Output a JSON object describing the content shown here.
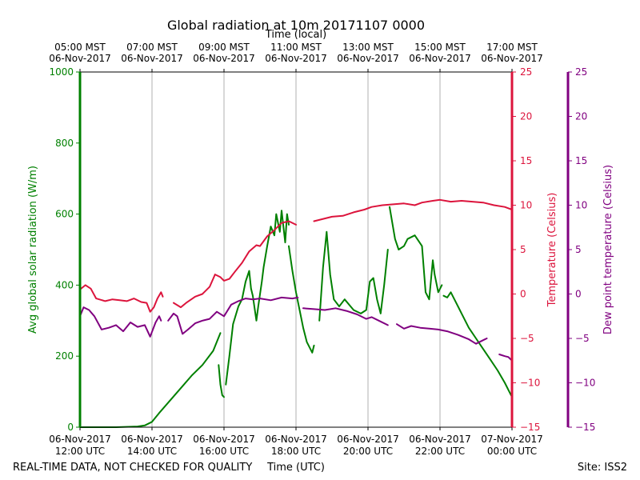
{
  "chart_data": {
    "type": "line",
    "title": "Global radiation at 10m 20171107 0000",
    "top_axis_label": "Time (local)",
    "xlabel": "Time (UTC)",
    "bottom_ticks": [
      {
        "hour": 12,
        "line1": "06-Nov-2017",
        "line2": "12:00 UTC"
      },
      {
        "hour": 14,
        "line1": "06-Nov-2017",
        "line2": "14:00 UTC"
      },
      {
        "hour": 16,
        "line1": "06-Nov-2017",
        "line2": "16:00 UTC"
      },
      {
        "hour": 18,
        "line1": "06-Nov-2017",
        "line2": "18:00 UTC"
      },
      {
        "hour": 20,
        "line1": "06-Nov-2017",
        "line2": "20:00 UTC"
      },
      {
        "hour": 22,
        "line1": "06-Nov-2017",
        "line2": "22:00 UTC"
      },
      {
        "hour": 24,
        "line1": "07-Nov-2017",
        "line2": "00:00 UTC"
      }
    ],
    "top_ticks": [
      {
        "hour": 12,
        "line1": "05:00 MST",
        "line2": "06-Nov-2017"
      },
      {
        "hour": 14,
        "line1": "07:00 MST",
        "line2": "06-Nov-2017"
      },
      {
        "hour": 16,
        "line1": "09:00 MST",
        "line2": "06-Nov-2017"
      },
      {
        "hour": 18,
        "line1": "11:00 MST",
        "line2": "06-Nov-2017"
      },
      {
        "hour": 20,
        "line1": "13:00 MST",
        "line2": "06-Nov-2017"
      },
      {
        "hour": 22,
        "line1": "15:00 MST",
        "line2": "06-Nov-2017"
      },
      {
        "hour": 24,
        "line1": "17:00 MST",
        "line2": "06-Nov-2017"
      }
    ],
    "xlim": [
      12,
      24
    ],
    "axes": {
      "radiation": {
        "label": "Avg global solar radiation (W/m)",
        "ylim": [
          0,
          1000
        ],
        "ticks": [
          0,
          200,
          400,
          600,
          800,
          1000
        ],
        "color": "#008000"
      },
      "temperature": {
        "label": "Temperature (Celsius)",
        "ylim": [
          -15,
          25
        ],
        "ticks": [
          -15,
          -10,
          -5,
          0,
          5,
          10,
          15,
          20,
          25
        ],
        "color": "#dc143c"
      },
      "dewpoint": {
        "label": "Dew point temperature (Celsius)",
        "ylim": [
          -15,
          25
        ],
        "ticks": [
          -15,
          -10,
          -5,
          0,
          5,
          10,
          15,
          20,
          25
        ],
        "color": "#800080"
      }
    },
    "series": [
      {
        "name": "Avg global solar radiation",
        "axis": "radiation",
        "color": "#008000",
        "segments": [
          [
            [
              12.0,
              0
            ],
            [
              13.0,
              0
            ],
            [
              13.6,
              2
            ],
            [
              13.8,
              5
            ],
            [
              14.0,
              15
            ],
            [
              14.2,
              40
            ],
            [
              14.5,
              75
            ],
            [
              14.8,
              110
            ],
            [
              15.1,
              145
            ],
            [
              15.4,
              175
            ],
            [
              15.7,
              215
            ],
            [
              15.8,
              240
            ],
            [
              15.9,
              265
            ]
          ],
          [
            [
              15.85,
              175
            ],
            [
              15.9,
              120
            ],
            [
              15.95,
              90
            ],
            [
              16.0,
              85
            ]
          ],
          [
            [
              16.05,
              120
            ],
            [
              16.15,
              200
            ],
            [
              16.25,
              290
            ],
            [
              16.4,
              340
            ],
            [
              16.5,
              360
            ],
            [
              16.6,
              410
            ],
            [
              16.7,
              440
            ],
            [
              16.75,
              390
            ],
            [
              16.8,
              370
            ],
            [
              16.9,
              300
            ],
            [
              16.95,
              340
            ],
            [
              17.05,
              410
            ],
            [
              17.1,
              450
            ],
            [
              17.2,
              510
            ],
            [
              17.3,
              565
            ],
            [
              17.4,
              540
            ],
            [
              17.45,
              600
            ],
            [
              17.55,
              550
            ],
            [
              17.6,
              610
            ],
            [
              17.7,
              520
            ],
            [
              17.75,
              600
            ],
            [
              17.8,
              570
            ]
          ],
          [
            [
              17.8,
              510
            ],
            [
              17.9,
              440
            ],
            [
              18.0,
              380
            ],
            [
              18.1,
              330
            ],
            [
              18.2,
              280
            ],
            [
              18.3,
              240
            ],
            [
              18.45,
              210
            ],
            [
              18.5,
              230
            ]
          ],
          [
            [
              18.65,
              300
            ],
            [
              18.75,
              450
            ],
            [
              18.85,
              550
            ],
            [
              18.95,
              430
            ],
            [
              19.05,
              360
            ],
            [
              19.2,
              340
            ],
            [
              19.35,
              360
            ],
            [
              19.6,
              330
            ],
            [
              19.8,
              320
            ],
            [
              19.95,
              330
            ],
            [
              20.05,
              410
            ],
            [
              20.15,
              420
            ],
            [
              20.25,
              360
            ],
            [
              20.35,
              320
            ],
            [
              20.45,
              400
            ],
            [
              20.55,
              500
            ]
          ],
          [
            [
              20.6,
              620
            ],
            [
              20.75,
              530
            ],
            [
              20.85,
              500
            ],
            [
              21.0,
              510
            ],
            [
              21.1,
              530
            ],
            [
              21.3,
              540
            ],
            [
              21.5,
              510
            ],
            [
              21.6,
              380
            ],
            [
              21.7,
              360
            ],
            [
              21.8,
              470
            ],
            [
              21.85,
              430
            ],
            [
              21.95,
              380
            ],
            [
              22.05,
              400
            ]
          ],
          [
            [
              22.1,
              370
            ],
            [
              22.2,
              365
            ],
            [
              22.3,
              380
            ],
            [
              22.4,
              360
            ],
            [
              22.5,
              340
            ],
            [
              22.6,
              320
            ],
            [
              22.8,
              280
            ],
            [
              23.0,
              250
            ],
            [
              23.2,
              220
            ],
            [
              23.4,
              190
            ],
            [
              23.6,
              160
            ],
            [
              23.8,
              125
            ],
            [
              24.0,
              85
            ]
          ]
        ]
      },
      {
        "name": "Temperature",
        "axis": "temperature",
        "color": "#dc143c",
        "segments": [
          [
            [
              12.0,
              0.5
            ],
            [
              12.15,
              1.0
            ],
            [
              12.3,
              0.6
            ],
            [
              12.45,
              -0.5
            ],
            [
              12.7,
              -0.8
            ],
            [
              12.9,
              -0.6
            ],
            [
              13.1,
              -0.7
            ],
            [
              13.3,
              -0.8
            ],
            [
              13.5,
              -0.5
            ],
            [
              13.7,
              -0.9
            ],
            [
              13.85,
              -1.0
            ],
            [
              13.95,
              -2.0
            ],
            [
              14.05,
              -1.5
            ],
            [
              14.15,
              -0.5
            ],
            [
              14.25,
              0.2
            ],
            [
              14.3,
              -0.3
            ]
          ],
          [
            [
              14.6,
              -1.0
            ],
            [
              14.8,
              -1.5
            ],
            [
              14.95,
              -1.0
            ],
            [
              15.2,
              -0.3
            ],
            [
              15.4,
              0.0
            ],
            [
              15.6,
              0.8
            ],
            [
              15.75,
              2.2
            ],
            [
              15.9,
              1.9
            ],
            [
              16.0,
              1.5
            ],
            [
              16.15,
              1.7
            ],
            [
              16.3,
              2.5
            ],
            [
              16.5,
              3.5
            ],
            [
              16.7,
              4.8
            ],
            [
              16.9,
              5.5
            ],
            [
              17.0,
              5.4
            ],
            [
              17.2,
              6.5
            ],
            [
              17.4,
              7.2
            ],
            [
              17.6,
              8.0
            ],
            [
              17.8,
              8.2
            ],
            [
              18.0,
              7.8
            ]
          ],
          [
            [
              18.5,
              8.2
            ],
            [
              18.8,
              8.5
            ],
            [
              19.0,
              8.7
            ],
            [
              19.3,
              8.8
            ],
            [
              19.6,
              9.2
            ],
            [
              19.9,
              9.5
            ],
            [
              20.1,
              9.8
            ],
            [
              20.4,
              10.0
            ],
            [
              20.7,
              10.1
            ],
            [
              21.0,
              10.2
            ],
            [
              21.3,
              10.0
            ],
            [
              21.5,
              10.3
            ],
            [
              21.8,
              10.5
            ],
            [
              22.0,
              10.6
            ],
            [
              22.3,
              10.4
            ],
            [
              22.6,
              10.5
            ],
            [
              22.9,
              10.4
            ],
            [
              23.2,
              10.3
            ],
            [
              23.5,
              10.0
            ],
            [
              23.8,
              9.8
            ],
            [
              24.0,
              9.5
            ]
          ]
        ]
      },
      {
        "name": "Dew point temperature",
        "axis": "dewpoint",
        "color": "#800080",
        "segments": [
          [
            [
              12.0,
              -2.5
            ],
            [
              12.1,
              -1.5
            ],
            [
              12.25,
              -1.8
            ],
            [
              12.4,
              -2.5
            ],
            [
              12.6,
              -4.0
            ],
            [
              12.8,
              -3.8
            ],
            [
              13.0,
              -3.5
            ],
            [
              13.2,
              -4.2
            ],
            [
              13.4,
              -3.2
            ],
            [
              13.6,
              -3.7
            ],
            [
              13.8,
              -3.5
            ],
            [
              13.95,
              -4.8
            ],
            [
              14.1,
              -3.2
            ],
            [
              14.2,
              -2.5
            ],
            [
              14.25,
              -3.0
            ]
          ],
          [
            [
              14.45,
              -3.0
            ],
            [
              14.6,
              -2.2
            ],
            [
              14.7,
              -2.5
            ],
            [
              14.85,
              -4.5
            ],
            [
              15.0,
              -4.0
            ],
            [
              15.2,
              -3.3
            ],
            [
              15.4,
              -3.0
            ],
            [
              15.6,
              -2.8
            ],
            [
              15.8,
              -2.0
            ],
            [
              16.0,
              -2.5
            ],
            [
              16.2,
              -1.2
            ],
            [
              16.4,
              -0.8
            ],
            [
              16.6,
              -0.5
            ],
            [
              16.8,
              -0.6
            ],
            [
              17.0,
              -0.5
            ],
            [
              17.3,
              -0.7
            ],
            [
              17.6,
              -0.4
            ],
            [
              17.9,
              -0.5
            ],
            [
              18.05,
              -0.4
            ]
          ],
          [
            [
              18.2,
              -1.6
            ],
            [
              18.5,
              -1.7
            ],
            [
              18.8,
              -1.8
            ],
            [
              19.1,
              -1.6
            ],
            [
              19.4,
              -1.9
            ],
            [
              19.7,
              -2.3
            ],
            [
              19.95,
              -2.8
            ],
            [
              20.1,
              -2.6
            ],
            [
              20.3,
              -3.0
            ],
            [
              20.55,
              -3.5
            ]
          ],
          [
            [
              20.8,
              -3.4
            ],
            [
              21.0,
              -3.9
            ],
            [
              21.2,
              -3.6
            ],
            [
              21.45,
              -3.8
            ],
            [
              21.7,
              -3.9
            ],
            [
              21.95,
              -4.0
            ],
            [
              22.2,
              -4.2
            ],
            [
              22.5,
              -4.6
            ],
            [
              22.8,
              -5.1
            ],
            [
              23.0,
              -5.6
            ],
            [
              23.2,
              -5.2
            ],
            [
              23.3,
              -5.0
            ]
          ],
          [
            [
              23.65,
              -6.8
            ],
            [
              23.8,
              -7.0
            ],
            [
              23.9,
              -7.1
            ],
            [
              24.0,
              -7.5
            ]
          ]
        ]
      }
    ]
  },
  "footer": {
    "left_note": "REAL-TIME DATA, NOT CHECKED FOR QUALITY",
    "site": "Site: ISS2"
  }
}
